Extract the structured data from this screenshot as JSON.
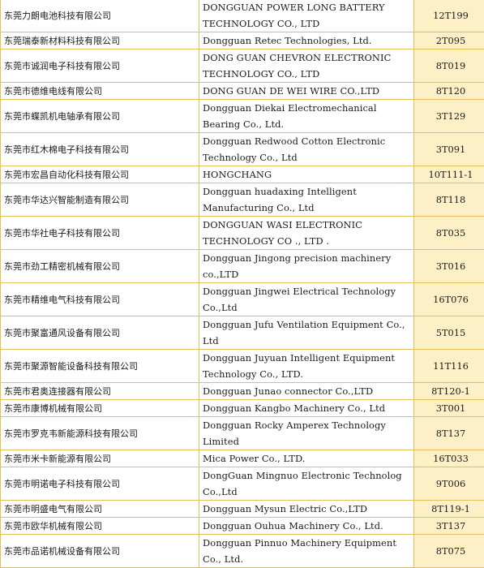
{
  "rows": [
    {
      "cn": "东莞力朗电池科技有限公司",
      "en": "DONGGUAN POWER LONG BATTERY TECHNOLOGY CO., LTD",
      "booth": "12T199",
      "h": 2
    },
    {
      "cn": "东莞瑞泰新材料科技有限公司",
      "en": "Dongguan Retec Technologies, Ltd.",
      "booth": "2T095",
      "h": 1
    },
    {
      "cn": "东莞市诚润电子科技有限公司",
      "en": "DONG GUAN CHEVRON ELECTRONIC TECHNOLOGY CO., LTD",
      "booth": "8T019",
      "h": 2
    },
    {
      "cn": "东莞市德维电线有限公司",
      "en": "DONG GUAN DE WEI WIRE CO.,LTD",
      "booth": "8T120",
      "h": 1
    },
    {
      "cn": "东莞市蝶凯机电轴承有限公司",
      "en": "Dongguan Diekai Electromechanical Bearing Co., Ltd.",
      "booth": "3T129",
      "h": 2
    },
    {
      "cn": "东莞市红木棉电子科技有限公司",
      "en": "Dongguan Redwood Cotton Electronic Technology Co., Ltd",
      "booth": "3T091",
      "h": 2
    },
    {
      "cn": "东莞市宏昌自动化科技有限公司",
      "en": "HONGCHANG",
      "booth": "10T111-1",
      "h": 1
    },
    {
      "cn": "东莞市华达兴智能制造有限公司",
      "en": "Dongguan huadaxing Intelligent Manufacturing Co., Ltd",
      "booth": "8T118",
      "h": 2
    },
    {
      "cn": "东莞市华社电子科技有限公司",
      "en": "DONGGUAN WASI ELECTRONIC TECHNOLOGY CO ., LTD .",
      "booth": "8T035",
      "h": 2
    },
    {
      "cn": "东莞市劲工精密机械有限公司",
      "en": "Dongguan Jingong  precision machinery co.,LTD",
      "booth": "3T016",
      "h": 2
    },
    {
      "cn": "东莞市精维电气科技有限公司",
      "en": "Dongguan Jingwei Electrical Technology Co.,Ltd",
      "booth": "16T076",
      "h": 2
    },
    {
      "cn": "东莞市聚富通风设备有限公司",
      "en": "Dongguan Jufu Ventilation Equipment Co., Ltd",
      "booth": "5T015",
      "h": 2
    },
    {
      "cn": "东莞市聚源智能设备科技有限公司",
      "en": "Dongguan Juyuan Intelligent Equipment Technology Co., LTD.",
      "booth": "11T116",
      "h": 2
    },
    {
      "cn": "东莞市君奥连接器有限公司",
      "en": "Dongguan Junao connector Co.,LTD",
      "booth": "8T120-1",
      "h": 1
    },
    {
      "cn": "东莞市康博机械有限公司",
      "en": "Dongguan Kangbo Machinery Co., Ltd",
      "booth": "3T001",
      "h": 1
    },
    {
      "cn": "东莞市罗克韦新能源科技有限公司",
      "en": "Dongguan Rocky Amperex Technology Limited",
      "booth": "8T137",
      "h": 2
    },
    {
      "cn": "东莞市米卡新能源有限公司",
      "en": "Mica Power Co., LTD.",
      "booth": "16T033",
      "h": 1
    },
    {
      "cn": "东莞市明诺电子科技有限公司",
      "en": "DongGuan Mingnuo Electronic Technolog Co.,Ltd",
      "booth": "9T006",
      "h": 2
    },
    {
      "cn": "东莞市明盛电气有限公司",
      "en": "Dongguan Mysun Electric Co.,LTD",
      "booth": "8T119-1",
      "h": 1
    },
    {
      "cn": "东莞市欧华机械有限公司",
      "en": "Dongguan Ouhua Machinery Co., Ltd.",
      "booth": "3T137",
      "h": 1
    },
    {
      "cn": "东莞市品诺机械设备有限公司",
      "en": "Dongguan Pinnuo Machinery Equipment Co., Ltd.",
      "booth": "8T075",
      "h": 2
    }
  ]
}
